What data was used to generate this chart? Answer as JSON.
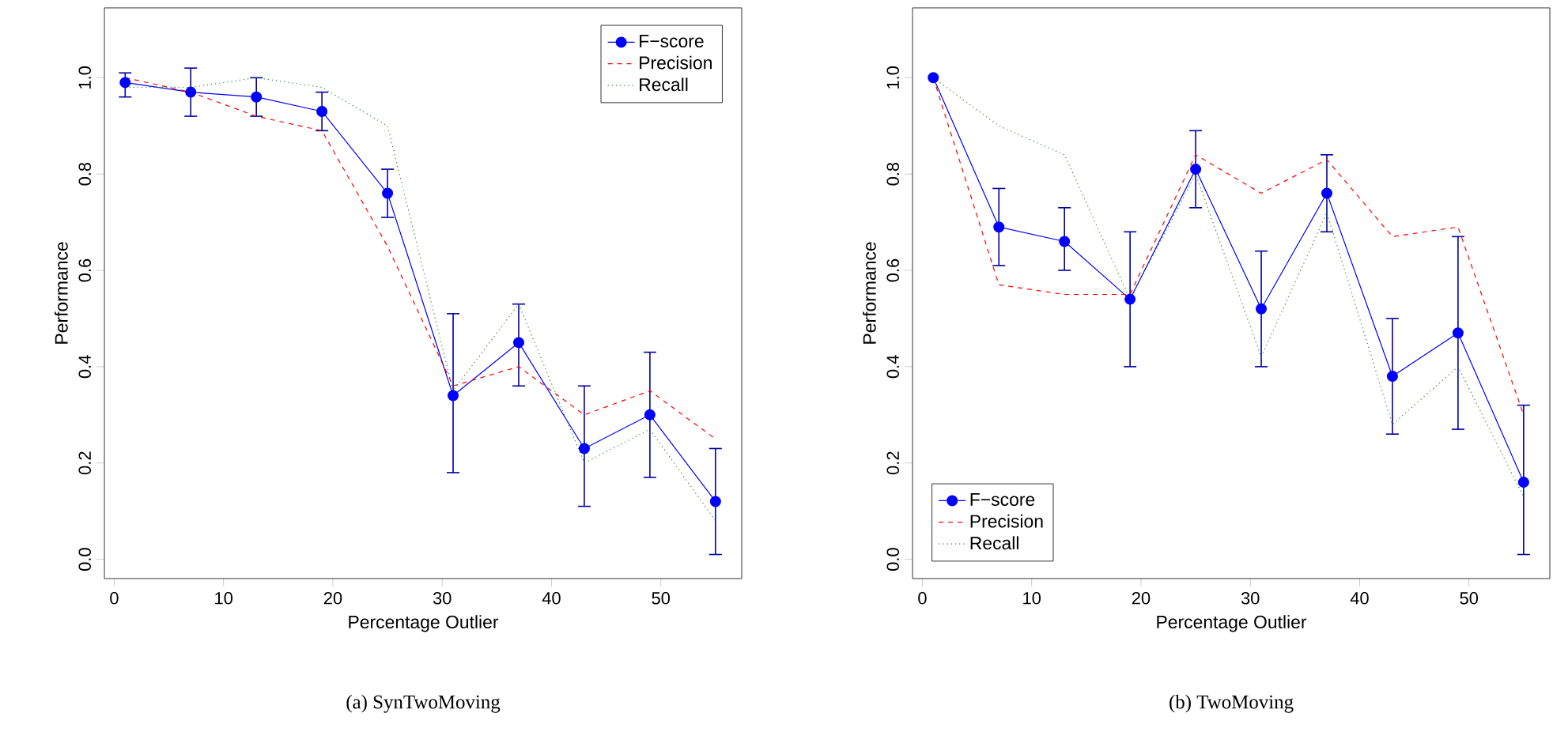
{
  "chart_data": [
    {
      "type": "line",
      "xlabel": "Percentage Outlier",
      "ylabel": "Performance",
      "x": [
        1,
        7,
        13,
        19,
        25,
        31,
        37,
        43,
        49,
        55
      ],
      "xlim": [
        -0.9,
        57.4
      ],
      "ylim": [
        -0.04,
        1.145
      ],
      "xticks": [
        0,
        10,
        20,
        30,
        40,
        50
      ],
      "yticks": [
        {
          "value": 0,
          "label": "0.0"
        },
        {
          "value": 0.2,
          "label": "0.2"
        },
        {
          "value": 0.4,
          "label": "0.4"
        },
        {
          "value": 0.6,
          "label": "0.6"
        },
        {
          "value": 0.8,
          "label": "0.8"
        },
        {
          "value": 1,
          "label": "1.0"
        }
      ],
      "legend": "top right",
      "grid": false,
      "annotations": [
        "(a) SynTwoMoving"
      ],
      "series": [
        {
          "name": "F−score",
          "color": "#0000ff",
          "line_style": "solid",
          "marker": "circle",
          "values": [
            0.99,
            0.97,
            0.96,
            0.93,
            0.76,
            0.34,
            0.45,
            0.23,
            0.3,
            0.12
          ],
          "errors": [
            [
              0.96,
              1.01
            ],
            [
              0.92,
              1.02
            ],
            [
              0.92,
              1.0
            ],
            [
              0.89,
              0.97
            ],
            [
              0.71,
              0.81
            ],
            [
              0.18,
              0.51
            ],
            [
              0.36,
              0.53
            ],
            [
              0.11,
              0.36
            ],
            [
              0.17,
              0.43
            ],
            [
              0.01,
              0.23
            ]
          ]
        },
        {
          "name": "Precision",
          "color": "#ff0000",
          "line_style": "dashed",
          "marker": "none",
          "values": [
            1.0,
            0.97,
            0.92,
            0.89,
            0.65,
            0.36,
            0.4,
            0.3,
            0.35,
            0.25
          ]
        },
        {
          "name": "Recall",
          "color": "#228b22",
          "line_style": "dotted",
          "marker": "none",
          "values": [
            0.98,
            0.98,
            1.0,
            0.98,
            0.9,
            0.35,
            0.53,
            0.2,
            0.27,
            0.08
          ]
        }
      ]
    },
    {
      "type": "line",
      "xlabel": "Percentage Outlier",
      "ylabel": "Performance",
      "x": [
        1,
        7,
        13,
        19,
        25,
        31,
        37,
        43,
        49,
        55
      ],
      "xlim": [
        -0.9,
        57.4
      ],
      "ylim": [
        -0.04,
        1.145
      ],
      "xticks": [
        0,
        10,
        20,
        30,
        40,
        50
      ],
      "yticks": [
        {
          "value": 0,
          "label": "0.0"
        },
        {
          "value": 0.2,
          "label": "0.2"
        },
        {
          "value": 0.4,
          "label": "0.4"
        },
        {
          "value": 0.6,
          "label": "0.6"
        },
        {
          "value": 0.8,
          "label": "0.8"
        },
        {
          "value": 1,
          "label": "1.0"
        }
      ],
      "legend": "bottom left",
      "grid": false,
      "annotations": [
        "(b) TwoMoving"
      ],
      "series": [
        {
          "name": "F−score",
          "color": "#0000ff",
          "line_style": "solid",
          "marker": "circle",
          "values": [
            1.0,
            0.69,
            0.66,
            0.54,
            0.81,
            0.52,
            0.76,
            0.38,
            0.47,
            0.16
          ],
          "errors": [
            null,
            [
              0.61,
              0.77
            ],
            [
              0.6,
              0.73
            ],
            [
              0.4,
              0.68
            ],
            [
              0.73,
              0.89
            ],
            [
              0.4,
              0.64
            ],
            [
              0.68,
              0.84
            ],
            [
              0.26,
              0.5
            ],
            [
              0.27,
              0.67
            ],
            [
              0.01,
              0.32
            ]
          ]
        },
        {
          "name": "Precision",
          "color": "#ff0000",
          "line_style": "dashed",
          "marker": "none",
          "values": [
            1.0,
            0.57,
            0.55,
            0.55,
            0.84,
            0.76,
            0.83,
            0.67,
            0.69,
            0.3
          ]
        },
        {
          "name": "Recall",
          "color": "#228b22",
          "line_style": "dotted",
          "marker": "none",
          "values": [
            1.0,
            0.9,
            0.84,
            0.54,
            0.8,
            0.42,
            0.72,
            0.28,
            0.4,
            0.13
          ]
        }
      ]
    }
  ]
}
